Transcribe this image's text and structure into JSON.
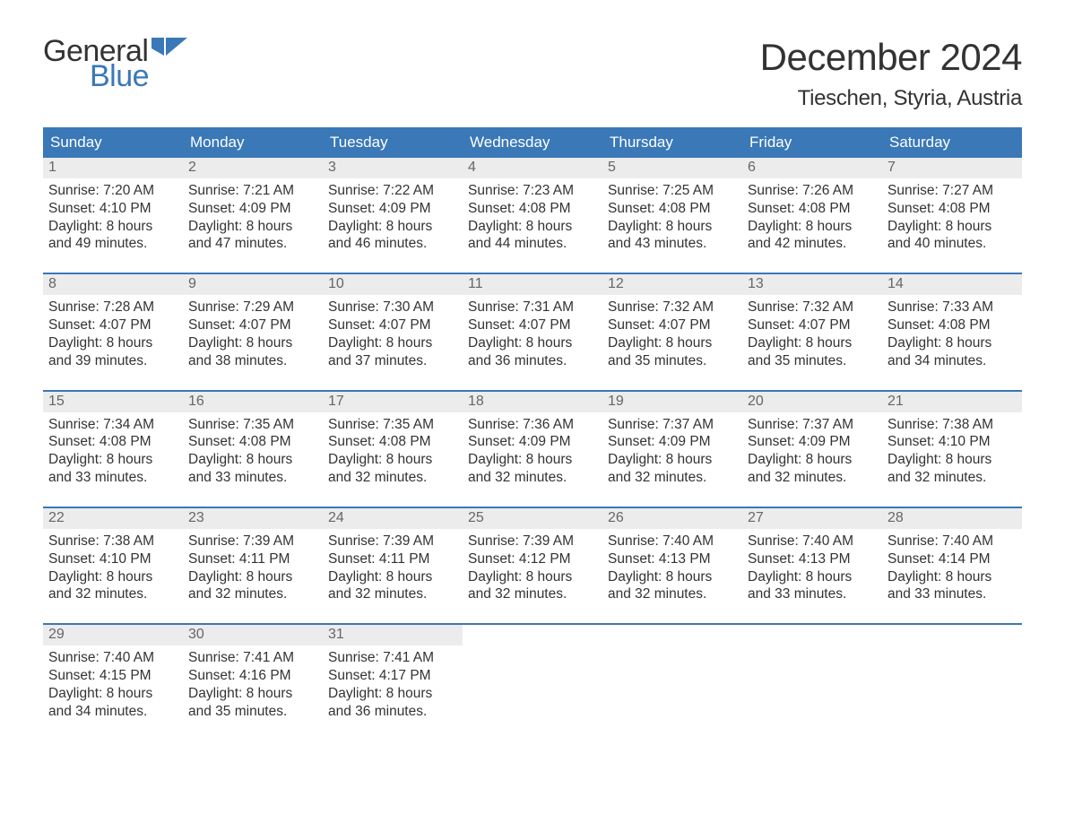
{
  "brand": {
    "word1": "General",
    "word2": "Blue"
  },
  "title": {
    "month": "December 2024",
    "location": "Tieschen, Styria, Austria"
  },
  "colors": {
    "accent": "#3a78b8",
    "header_bg": "#3a78b8",
    "daynum_bg": "#ececec",
    "text": "#333333",
    "muted": "#666666",
    "background": "#ffffff"
  },
  "daysOfWeek": [
    "Sunday",
    "Monday",
    "Tuesday",
    "Wednesday",
    "Thursday",
    "Friday",
    "Saturday"
  ],
  "calendar": {
    "type": "calendar-grid",
    "columns": 7,
    "weeks": [
      [
        {
          "n": 1,
          "sunrise": "7:20 AM",
          "sunset": "4:10 PM",
          "dl_h": 8,
          "dl_m": 49
        },
        {
          "n": 2,
          "sunrise": "7:21 AM",
          "sunset": "4:09 PM",
          "dl_h": 8,
          "dl_m": 47
        },
        {
          "n": 3,
          "sunrise": "7:22 AM",
          "sunset": "4:09 PM",
          "dl_h": 8,
          "dl_m": 46
        },
        {
          "n": 4,
          "sunrise": "7:23 AM",
          "sunset": "4:08 PM",
          "dl_h": 8,
          "dl_m": 44
        },
        {
          "n": 5,
          "sunrise": "7:25 AM",
          "sunset": "4:08 PM",
          "dl_h": 8,
          "dl_m": 43
        },
        {
          "n": 6,
          "sunrise": "7:26 AM",
          "sunset": "4:08 PM",
          "dl_h": 8,
          "dl_m": 42
        },
        {
          "n": 7,
          "sunrise": "7:27 AM",
          "sunset": "4:08 PM",
          "dl_h": 8,
          "dl_m": 40
        }
      ],
      [
        {
          "n": 8,
          "sunrise": "7:28 AM",
          "sunset": "4:07 PM",
          "dl_h": 8,
          "dl_m": 39
        },
        {
          "n": 9,
          "sunrise": "7:29 AM",
          "sunset": "4:07 PM",
          "dl_h": 8,
          "dl_m": 38
        },
        {
          "n": 10,
          "sunrise": "7:30 AM",
          "sunset": "4:07 PM",
          "dl_h": 8,
          "dl_m": 37
        },
        {
          "n": 11,
          "sunrise": "7:31 AM",
          "sunset": "4:07 PM",
          "dl_h": 8,
          "dl_m": 36
        },
        {
          "n": 12,
          "sunrise": "7:32 AM",
          "sunset": "4:07 PM",
          "dl_h": 8,
          "dl_m": 35
        },
        {
          "n": 13,
          "sunrise": "7:32 AM",
          "sunset": "4:07 PM",
          "dl_h": 8,
          "dl_m": 35
        },
        {
          "n": 14,
          "sunrise": "7:33 AM",
          "sunset": "4:08 PM",
          "dl_h": 8,
          "dl_m": 34
        }
      ],
      [
        {
          "n": 15,
          "sunrise": "7:34 AM",
          "sunset": "4:08 PM",
          "dl_h": 8,
          "dl_m": 33
        },
        {
          "n": 16,
          "sunrise": "7:35 AM",
          "sunset": "4:08 PM",
          "dl_h": 8,
          "dl_m": 33
        },
        {
          "n": 17,
          "sunrise": "7:35 AM",
          "sunset": "4:08 PM",
          "dl_h": 8,
          "dl_m": 32
        },
        {
          "n": 18,
          "sunrise": "7:36 AM",
          "sunset": "4:09 PM",
          "dl_h": 8,
          "dl_m": 32
        },
        {
          "n": 19,
          "sunrise": "7:37 AM",
          "sunset": "4:09 PM",
          "dl_h": 8,
          "dl_m": 32
        },
        {
          "n": 20,
          "sunrise": "7:37 AM",
          "sunset": "4:09 PM",
          "dl_h": 8,
          "dl_m": 32
        },
        {
          "n": 21,
          "sunrise": "7:38 AM",
          "sunset": "4:10 PM",
          "dl_h": 8,
          "dl_m": 32
        }
      ],
      [
        {
          "n": 22,
          "sunrise": "7:38 AM",
          "sunset": "4:10 PM",
          "dl_h": 8,
          "dl_m": 32
        },
        {
          "n": 23,
          "sunrise": "7:39 AM",
          "sunset": "4:11 PM",
          "dl_h": 8,
          "dl_m": 32
        },
        {
          "n": 24,
          "sunrise": "7:39 AM",
          "sunset": "4:11 PM",
          "dl_h": 8,
          "dl_m": 32
        },
        {
          "n": 25,
          "sunrise": "7:39 AM",
          "sunset": "4:12 PM",
          "dl_h": 8,
          "dl_m": 32
        },
        {
          "n": 26,
          "sunrise": "7:40 AM",
          "sunset": "4:13 PM",
          "dl_h": 8,
          "dl_m": 32
        },
        {
          "n": 27,
          "sunrise": "7:40 AM",
          "sunset": "4:13 PM",
          "dl_h": 8,
          "dl_m": 33
        },
        {
          "n": 28,
          "sunrise": "7:40 AM",
          "sunset": "4:14 PM",
          "dl_h": 8,
          "dl_m": 33
        }
      ],
      [
        {
          "n": 29,
          "sunrise": "7:40 AM",
          "sunset": "4:15 PM",
          "dl_h": 8,
          "dl_m": 34
        },
        {
          "n": 30,
          "sunrise": "7:41 AM",
          "sunset": "4:16 PM",
          "dl_h": 8,
          "dl_m": 35
        },
        {
          "n": 31,
          "sunrise": "7:41 AM",
          "sunset": "4:17 PM",
          "dl_h": 8,
          "dl_m": 36
        },
        {
          "empty": true
        },
        {
          "empty": true
        },
        {
          "empty": true
        },
        {
          "empty": true
        }
      ]
    ]
  },
  "labels": {
    "sunrise_prefix": "Sunrise: ",
    "sunset_prefix": "Sunset: ",
    "daylight_prefix": "Daylight: ",
    "hours_word": " hours",
    "and_word": "and ",
    "minutes_word": " minutes."
  }
}
